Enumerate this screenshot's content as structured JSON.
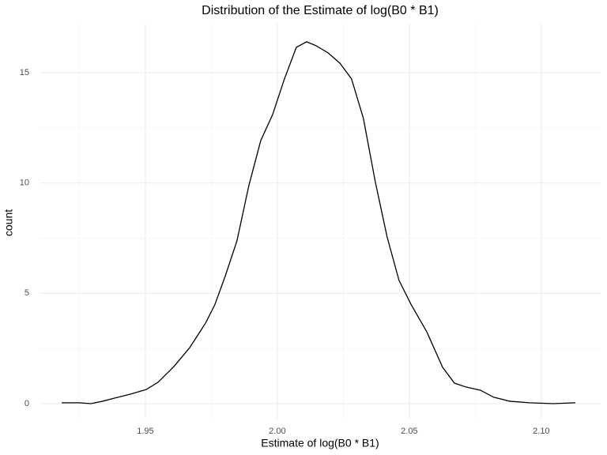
{
  "chart_data": {
    "type": "line",
    "title": "Distribution of the Estimate of log(B0 * B1)",
    "x_label": "Estimate of log(B0 * B1)",
    "y_label": "count",
    "x": [
      1.9183,
      1.9249,
      1.9293,
      1.9338,
      1.9383,
      1.9443,
      1.9503,
      1.9548,
      1.9608,
      1.9668,
      1.9728,
      1.9763,
      1.9802,
      1.9847,
      1.9892,
      1.9937,
      1.9982,
      2.0027,
      2.0072,
      2.0111,
      2.0147,
      2.0192,
      2.0237,
      2.0281,
      2.0326,
      2.0371,
      2.0416,
      2.0461,
      2.0506,
      2.0566,
      2.0626,
      2.0671,
      2.0716,
      2.0769,
      2.082,
      2.088,
      2.0955,
      2.1045,
      2.1129
    ],
    "series": [
      {
        "name": "count",
        "color": "#000000",
        "values": [
          0.04,
          0.04,
          0,
          0.11,
          0.25,
          0.43,
          0.64,
          0.97,
          1.68,
          2.54,
          3.65,
          4.48,
          5.76,
          7.38,
          9.88,
          11.92,
          13.1,
          14.72,
          16.15,
          16.4,
          16.22,
          15.9,
          15.43,
          14.72,
          12.93,
          10.06,
          7.55,
          5.59,
          4.51,
          3.26,
          1.65,
          0.93,
          0.75,
          0.61,
          0.29,
          0.11,
          0.04,
          0,
          0.04
        ]
      }
    ],
    "xlim": [
      1.9099,
      2.1225
    ],
    "ylim": [
      -0.68,
      17.22
    ],
    "xticks": [
      1.95,
      {
        "value": 2.0,
        "label": "2.00"
      },
      2.05,
      {
        "value": 2.1,
        "label": "2.10"
      }
    ],
    "yticks": [
      0,
      5,
      10,
      15
    ],
    "x_minor_ticks": [
      1.925,
      1.975,
      2.025,
      2.075
    ],
    "y_minor_ticks": [
      2.5,
      7.5,
      12.5
    ],
    "grid": true
  }
}
